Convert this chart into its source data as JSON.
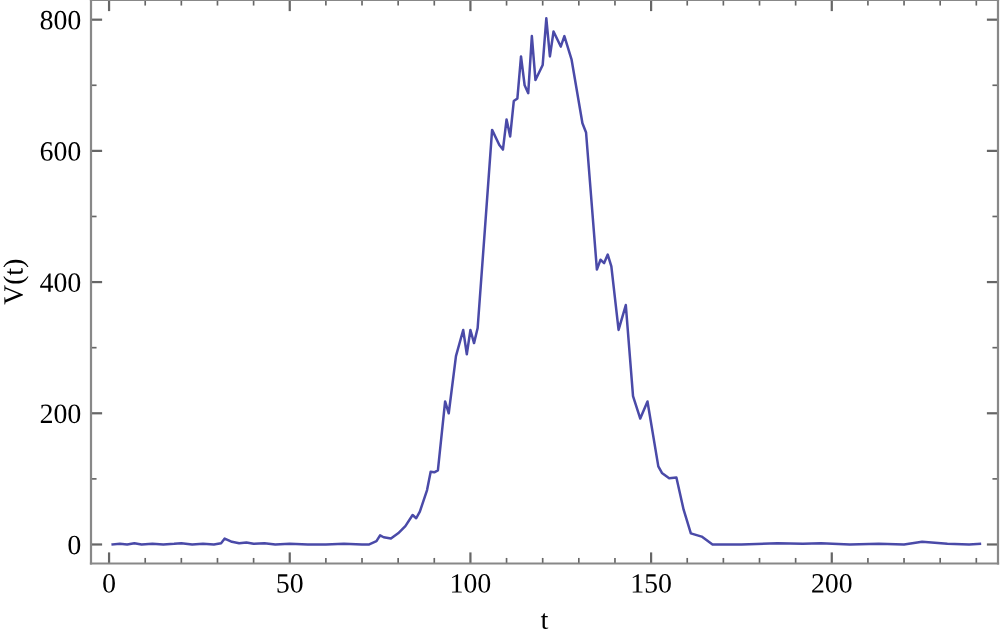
{
  "chart_data": {
    "type": "line",
    "xlabel": "t",
    "ylabel": "V(t)",
    "x": [
      1,
      3,
      5,
      7,
      9,
      12,
      15,
      18,
      20,
      23,
      26,
      29,
      31,
      32,
      34,
      36,
      38,
      40,
      43,
      46,
      50,
      55,
      60,
      65,
      70,
      72,
      74,
      75,
      76,
      78,
      80,
      82,
      84,
      85,
      86,
      88,
      89,
      90,
      91,
      93,
      94,
      96,
      98,
      99,
      100,
      101,
      102,
      104,
      106,
      108,
      109,
      110,
      111,
      112,
      113,
      114,
      115,
      116,
      117,
      118,
      120,
      121,
      122,
      123,
      125,
      126,
      128,
      131,
      132,
      135,
      136,
      137,
      138,
      139,
      141,
      143,
      145,
      147,
      149,
      152,
      153,
      155,
      157,
      159,
      161,
      164,
      167,
      175,
      185,
      192,
      197,
      205,
      213,
      220,
      225,
      232,
      238,
      241
    ],
    "series": [
      {
        "color": "#4a4aa8",
        "values": [
          0,
          1,
          0,
          2,
          0,
          1,
          0,
          1,
          2,
          0,
          1,
          0,
          2,
          9,
          4,
          2,
          3,
          1,
          2,
          0,
          1,
          0,
          0,
          1,
          0,
          0,
          5,
          14,
          11,
          9,
          17,
          28,
          45,
          40,
          50,
          83,
          111,
          110,
          113,
          218,
          200,
          287,
          327,
          290,
          327,
          307,
          330,
          480,
          632,
          609,
          602,
          648,
          622,
          676,
          680,
          744,
          700,
          688,
          775,
          708,
          731,
          802,
          744,
          782,
          759,
          775,
          739,
          642,
          628,
          419,
          434,
          429,
          442,
          424,
          327,
          365,
          226,
          192,
          218,
          119,
          109,
          101,
          102,
          53,
          17,
          12,
          0,
          0,
          2,
          1,
          2,
          0,
          1,
          0,
          4,
          1,
          0,
          1
        ]
      }
    ],
    "xlim": [
      -5,
      246
    ],
    "xticks": [
      0,
      {
        "value": 10,
        "label": null
      },
      {
        "value": 20,
        "label": null
      },
      {
        "value": 30,
        "label": null
      },
      {
        "value": 40,
        "label": null
      },
      50,
      {
        "value": 60,
        "label": null
      },
      {
        "value": 70,
        "label": null
      },
      {
        "value": 80,
        "label": null
      },
      {
        "value": 90,
        "label": null
      },
      100,
      {
        "value": 110,
        "label": null
      },
      {
        "value": 120,
        "label": null
      },
      {
        "value": 130,
        "label": null
      },
      {
        "value": 140,
        "label": null
      },
      150,
      {
        "value": 160,
        "label": null
      },
      {
        "value": 170,
        "label": null
      },
      {
        "value": 180,
        "label": null
      },
      {
        "value": 190,
        "label": null
      },
      200,
      {
        "value": 210,
        "label": null
      },
      {
        "value": 220,
        "label": null
      },
      {
        "value": 230,
        "label": null
      },
      {
        "value": 240,
        "label": null
      }
    ],
    "ylim": [
      -29,
      830
    ],
    "yticks": [
      0,
      {
        "value": 100,
        "label": null
      },
      200,
      {
        "value": 300,
        "label": null
      },
      400,
      {
        "value": 500,
        "label": null
      },
      600,
      {
        "value": 700,
        "label": null
      },
      800
    ],
    "grid": false,
    "legend": false,
    "marker": "none",
    "line_style": "solid"
  }
}
